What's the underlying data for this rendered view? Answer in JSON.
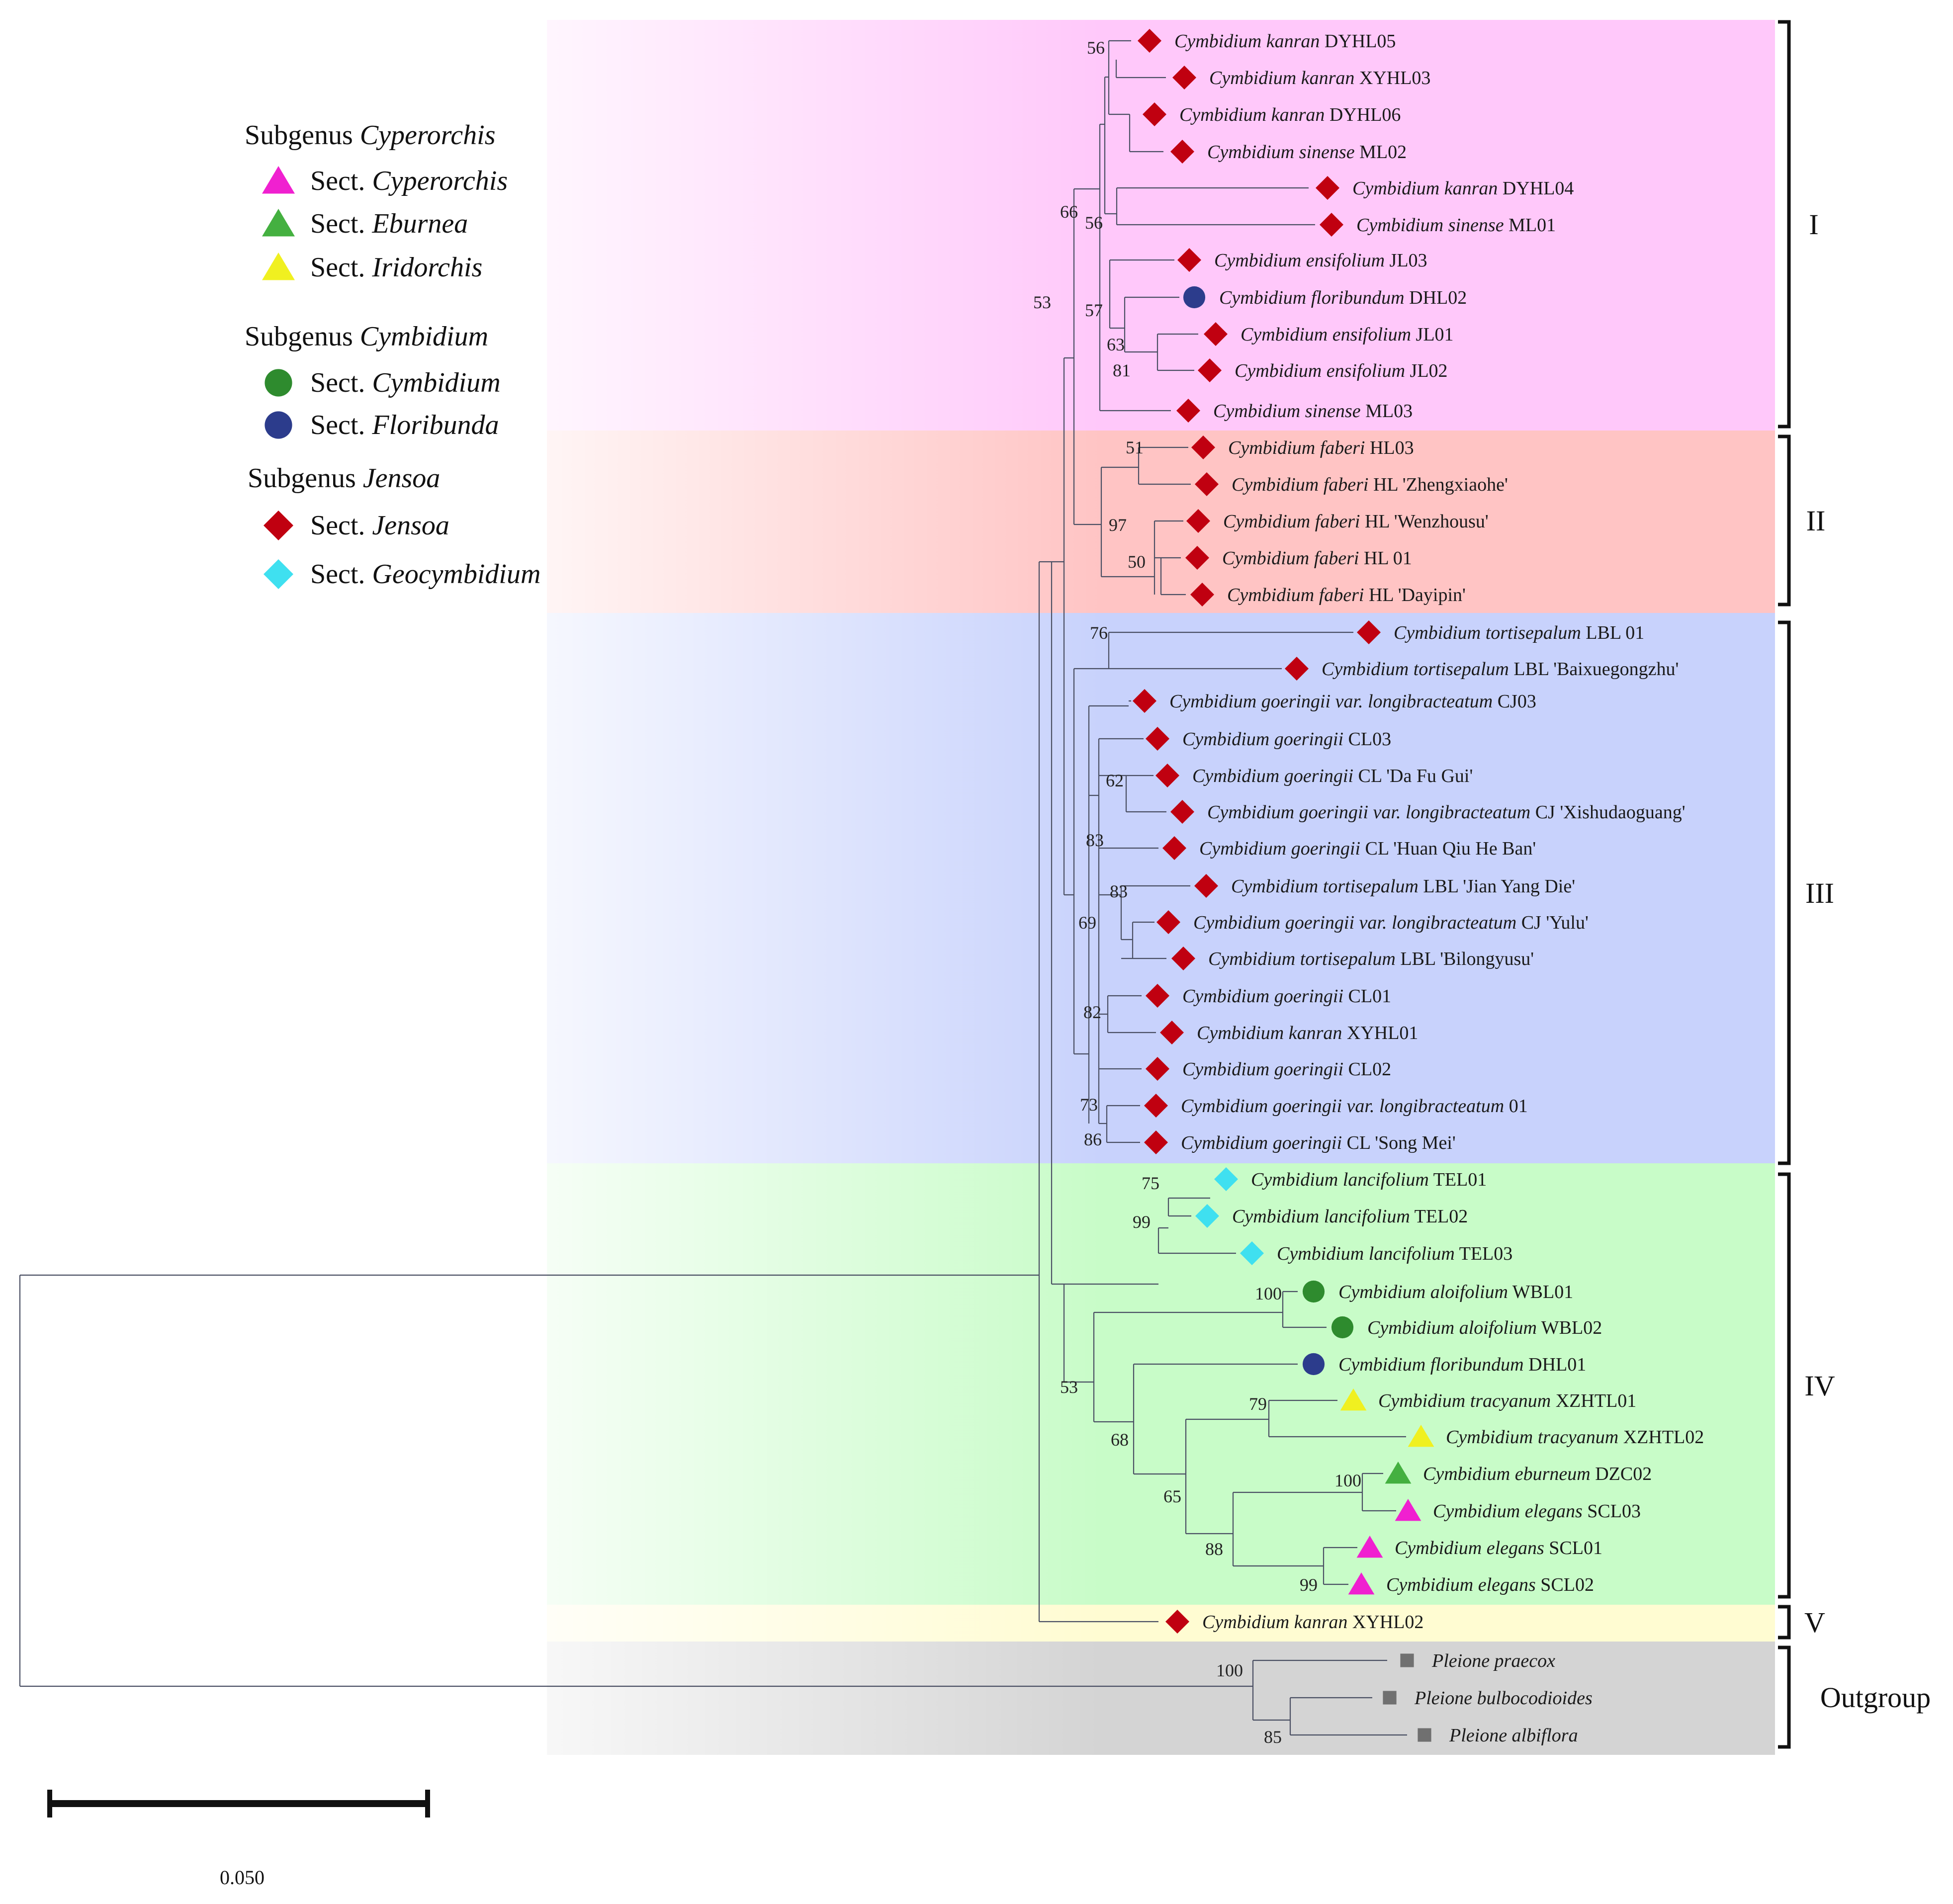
{
  "colors": {
    "branch": "#4a4f63",
    "jensoa": "#c00010",
    "geocymbidium": "#3fe0f0",
    "cymbidium": "#2e8b2e",
    "floribunda": "#2c3c8c",
    "cyperorchis": "#f020d0",
    "eburnea": "#44b040",
    "iridorchis": "#f0f020",
    "outgroup": "#707070"
  },
  "legend": {
    "groups": [
      {
        "prefix": "Subgenus ",
        "name": "Cyperorchis",
        "items": [
          {
            "marker": "triangle",
            "color": "cyperorchis",
            "prefix": "Sect. ",
            "name": "Cyperorchis"
          },
          {
            "marker": "triangle",
            "color": "eburnea",
            "prefix": "Sect. ",
            "name": "Eburnea"
          },
          {
            "marker": "triangle",
            "color": "iridorchis",
            "prefix": "Sect. ",
            "name": "Iridorchis"
          }
        ]
      },
      {
        "prefix": "Subgenus ",
        "name": "Cymbidium",
        "items": [
          {
            "marker": "circle",
            "color": "cymbidium",
            "prefix": "Sect. ",
            "name": "Cymbidium"
          },
          {
            "marker": "circle",
            "color": "floribunda",
            "prefix": "Sect. ",
            "name": "Floribunda"
          }
        ]
      },
      {
        "prefix": "Subgenus ",
        "name": "Jensoa",
        "items": [
          {
            "marker": "diamond",
            "color": "jensoa",
            "prefix": "Sect. ",
            "name": "Jensoa"
          },
          {
            "marker": "diamond",
            "color": "geocymbidium",
            "prefix": "Sect. ",
            "name": "Geocymbidium"
          }
        ]
      }
    ]
  },
  "clades": [
    {
      "label": "I",
      "bg": "#ffc8fa",
      "from": 0,
      "to": 10
    },
    {
      "label": "II",
      "bg": "#ffc4c4",
      "from": 11,
      "to": 15
    },
    {
      "label": "III",
      "bg": "#c8d2fc",
      "from": 16,
      "to": 30
    },
    {
      "label": "IV",
      "bg": "#c8fcc8",
      "from": 31,
      "to": 42
    },
    {
      "label": "V",
      "bg": "#fffcd2",
      "from": 43,
      "to": 43
    },
    {
      "label": "Outgroup",
      "bg": "#d4d4d4",
      "from": 44,
      "to": 46
    }
  ],
  "tips": [
    {
      "genus": "Cymbidium kanran",
      "suffix": " DYHL05",
      "marker": "diamond",
      "color": "jensoa"
    },
    {
      "genus": "Cymbidium kanran",
      "suffix": " XYHL03",
      "marker": "diamond",
      "color": "jensoa"
    },
    {
      "genus": "Cymbidium kanran",
      "suffix": " DYHL06",
      "marker": "diamond",
      "color": "jensoa"
    },
    {
      "genus": "Cymbidium sinense",
      "suffix": " ML02",
      "marker": "diamond",
      "color": "jensoa"
    },
    {
      "genus": "Cymbidium kanran",
      "suffix": " DYHL04",
      "marker": "diamond",
      "color": "jensoa"
    },
    {
      "genus": "Cymbidium sinense",
      "suffix": " ML01",
      "marker": "diamond",
      "color": "jensoa"
    },
    {
      "genus": "Cymbidium ensifolium",
      "suffix": " JL03",
      "marker": "diamond",
      "color": "jensoa"
    },
    {
      "genus": "Cymbidium floribundum",
      "suffix": " DHL02",
      "marker": "circle",
      "color": "floribunda"
    },
    {
      "genus": "Cymbidium ensifolium",
      "suffix": " JL01",
      "marker": "diamond",
      "color": "jensoa"
    },
    {
      "genus": "Cymbidium ensifolium",
      "suffix": " JL02",
      "marker": "diamond",
      "color": "jensoa"
    },
    {
      "genus": "Cymbidium sinense",
      "suffix": " ML03",
      "marker": "diamond",
      "color": "jensoa"
    },
    {
      "genus": "Cymbidium faberi",
      "suffix": " HL03",
      "marker": "diamond",
      "color": "jensoa"
    },
    {
      "genus": "Cymbidium faberi",
      "suffix": " HL 'Zhengxiaohe'",
      "marker": "diamond",
      "color": "jensoa"
    },
    {
      "genus": "Cymbidium faberi",
      "suffix": " HL 'Wenzhousu'",
      "marker": "diamond",
      "color": "jensoa"
    },
    {
      "genus": "Cymbidium faberi",
      "suffix": " HL 01",
      "marker": "diamond",
      "color": "jensoa"
    },
    {
      "genus": "Cymbidium faberi",
      "suffix": " HL 'Dayipin'",
      "marker": "diamond",
      "color": "jensoa"
    },
    {
      "genus": "Cymbidium tortisepalum",
      "suffix": " LBL 01",
      "marker": "diamond",
      "color": "jensoa"
    },
    {
      "genus": "Cymbidium tortisepalum",
      "suffix": " LBL 'Baixuegongzhu'",
      "marker": "diamond",
      "color": "jensoa"
    },
    {
      "genus": "Cymbidium goeringii var. longibracteatum",
      "suffix": " CJ03",
      "marker": "diamond",
      "color": "jensoa"
    },
    {
      "genus": "Cymbidium goeringii",
      "suffix": " CL03",
      "marker": "diamond",
      "color": "jensoa"
    },
    {
      "genus": "Cymbidium goeringii",
      "suffix": " CL 'Da Fu Gui'",
      "marker": "diamond",
      "color": "jensoa"
    },
    {
      "genus": "Cymbidium goeringii var. longibracteatum",
      "suffix": " CJ 'Xishudaoguang'",
      "marker": "diamond",
      "color": "jensoa"
    },
    {
      "genus": "Cymbidium goeringii",
      "suffix": " CL 'Huan Qiu He Ban'",
      "marker": "diamond",
      "color": "jensoa"
    },
    {
      "genus": "Cymbidium tortisepalum",
      "suffix": " LBL 'Jian Yang Die'",
      "marker": "diamond",
      "color": "jensoa"
    },
    {
      "genus": "Cymbidium goeringii var. longibracteatum",
      "suffix": " CJ 'Yulu'",
      "marker": "diamond",
      "color": "jensoa"
    },
    {
      "genus": "Cymbidium tortisepalum",
      "suffix": " LBL 'Bilongyusu'",
      "marker": "diamond",
      "color": "jensoa"
    },
    {
      "genus": "Cymbidium goeringii",
      "suffix": " CL01",
      "marker": "diamond",
      "color": "jensoa"
    },
    {
      "genus": "Cymbidium kanran",
      "suffix": " XYHL01",
      "marker": "diamond",
      "color": "jensoa"
    },
    {
      "genus": "Cymbidium goeringii",
      "suffix": " CL02",
      "marker": "diamond",
      "color": "jensoa"
    },
    {
      "genus": "Cymbidium goeringii var. longibracteatum",
      "suffix": " 01",
      "marker": "diamond",
      "color": "jensoa"
    },
    {
      "genus": "Cymbidium goeringii",
      "suffix": " CL 'Song Mei'",
      "marker": "diamond",
      "color": "jensoa"
    },
    {
      "genus": "Cymbidium lancifolium",
      "suffix": " TEL01",
      "marker": "diamond",
      "color": "geocymbidium"
    },
    {
      "genus": "Cymbidium lancifolium",
      "suffix": " TEL02",
      "marker": "diamond",
      "color": "geocymbidium"
    },
    {
      "genus": "Cymbidium lancifolium",
      "suffix": " TEL03",
      "marker": "diamond",
      "color": "geocymbidium"
    },
    {
      "genus": "Cymbidium aloifolium",
      "suffix": " WBL01",
      "marker": "circle",
      "color": "cymbidium"
    },
    {
      "genus": "Cymbidium aloifolium",
      "suffix": " WBL02",
      "marker": "circle",
      "color": "cymbidium"
    },
    {
      "genus": "Cymbidium floribundum",
      "suffix": " DHL01",
      "marker": "circle",
      "color": "floribunda"
    },
    {
      "genus": "Cymbidium tracyanum",
      "suffix": " XZHTL01",
      "marker": "triangle",
      "color": "iridorchis"
    },
    {
      "genus": "Cymbidium tracyanum",
      "suffix": " XZHTL02",
      "marker": "triangle",
      "color": "iridorchis"
    },
    {
      "genus": "Cymbidium eburneum",
      "suffix": " DZC02",
      "marker": "triangle",
      "color": "eburnea"
    },
    {
      "genus": "Cymbidium elegans",
      "suffix": " SCL03",
      "marker": "triangle",
      "color": "cyperorchis"
    },
    {
      "genus": "Cymbidium elegans",
      "suffix": " SCL01",
      "marker": "triangle",
      "color": "cyperorchis"
    },
    {
      "genus": "Cymbidium elegans",
      "suffix": " SCL02",
      "marker": "triangle",
      "color": "cyperorchis"
    },
    {
      "genus": "Cymbidium kanran",
      "suffix": " XYHL02",
      "marker": "diamond",
      "color": "jensoa"
    },
    {
      "genus": "Pleione praecox",
      "suffix": "",
      "marker": "square",
      "color": "outgroup"
    },
    {
      "genus": "Pleione bulbocodioides",
      "suffix": "",
      "marker": "square",
      "color": "outgroup"
    },
    {
      "genus": "Pleione albiflora",
      "suffix": "",
      "marker": "square",
      "color": "outgroup"
    }
  ],
  "support_values": [
    "56",
    "66",
    "56",
    "53",
    "57",
    "63",
    "81",
    "51",
    "97",
    "50",
    "76",
    "62",
    "83",
    "83",
    "69",
    "82",
    "73",
    "86",
    "75",
    "99",
    "100",
    "53",
    "79",
    "68",
    "100",
    "65",
    "88",
    "99",
    "100",
    "85"
  ],
  "scale_bar": {
    "value": "0.050"
  }
}
